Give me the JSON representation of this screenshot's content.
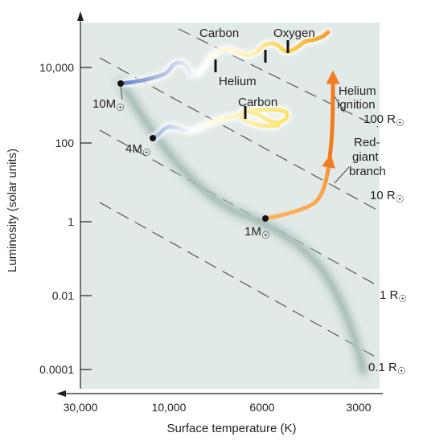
{
  "colors": {
    "panel_bg": "#e2eae8",
    "axis": "#231f20",
    "main_sequence_band": "#b4c6c2",
    "radius_line": "#4a4a4a",
    "star_dot": "#111111",
    "track_massive": "#5e7fcc",
    "track_sunlike": "#f08a2a",
    "track_burning": "#fde36a"
  },
  "axes": {
    "y_label": "Luminosity (solar units)",
    "x_label": "Surface temperature (K)",
    "y_ticks": [
      "10,000",
      "100",
      "1",
      "0.01",
      "0.0001"
    ],
    "x_ticks": [
      "30,000",
      "10,000",
      "6000",
      "3000"
    ]
  },
  "radius_lines": [
    {
      "label": "100 R",
      "symbol": "☉"
    },
    {
      "label": "10 R",
      "symbol": "☉"
    },
    {
      "label": "1 R",
      "symbol": "☉"
    },
    {
      "label": "0.1 R",
      "symbol": "☉"
    }
  ],
  "stars": [
    {
      "label": "10M",
      "symbol": "☉"
    },
    {
      "label": "4M",
      "symbol": "☉"
    },
    {
      "label": "1M",
      "symbol": "☉"
    }
  ],
  "annotations": {
    "carbon_top": "Carbon",
    "oxygen": "Oxygen",
    "helium": "Helium",
    "carbon_mid": "Carbon",
    "helium_ignition": [
      "Helium",
      "ignition"
    ],
    "red_giant_branch": [
      "Red-",
      "giant",
      "branch"
    ]
  }
}
